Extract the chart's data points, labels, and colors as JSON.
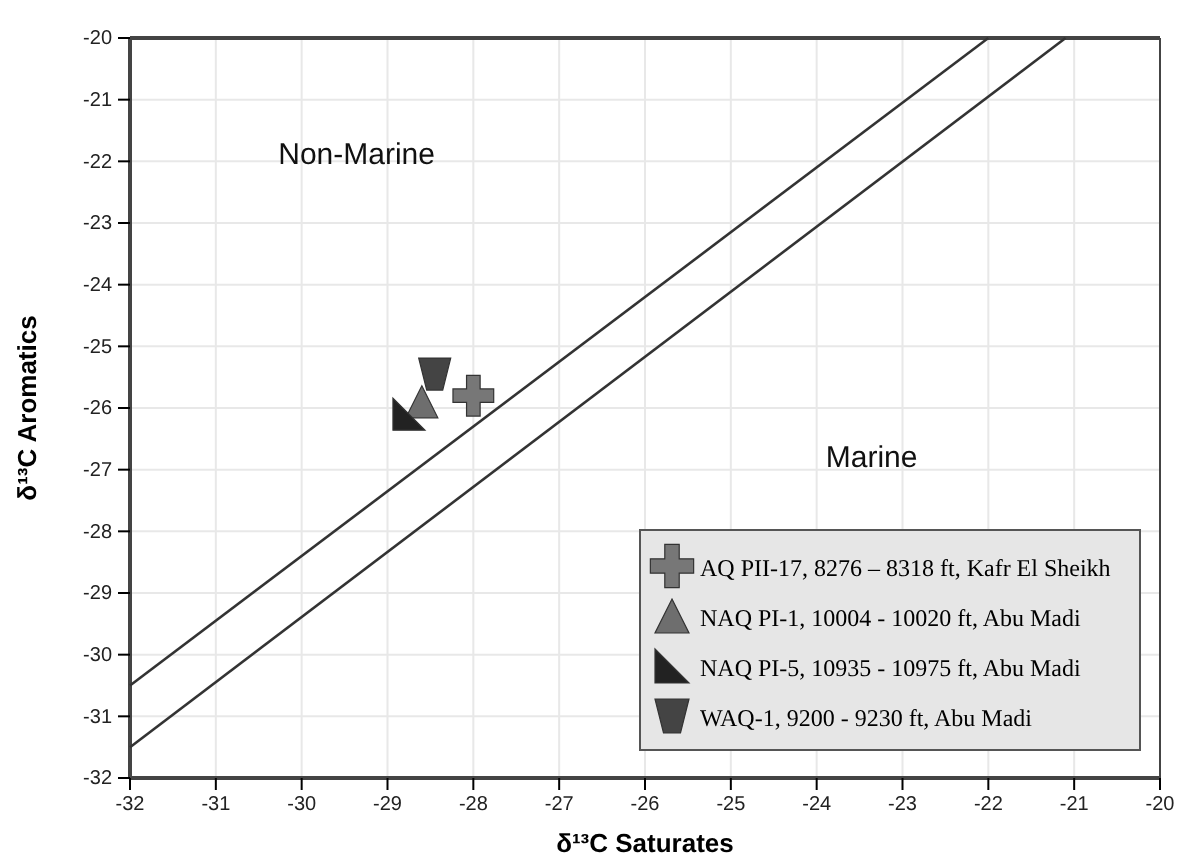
{
  "chart_data": {
    "type": "scatter",
    "xlabel": "δ¹³C Saturates",
    "ylabel": "δ¹³C Aromatics",
    "xlim": [
      -32,
      -20
    ],
    "ylim": [
      -32,
      -20
    ],
    "xticks": [
      -32,
      -31,
      -30,
      -29,
      -28,
      -27,
      -26,
      -25,
      -24,
      -23,
      -22,
      -21,
      -20
    ],
    "yticks": [
      -32,
      -31,
      -30,
      -29,
      -28,
      -27,
      -26,
      -25,
      -24,
      -23,
      -22,
      -21,
      -20
    ],
    "grid": true,
    "legend": "bottom right",
    "series": [
      {
        "type": "line",
        "color": "#333333",
        "x": [
          -32,
          -22
        ],
        "values": [
          -30.5,
          -20
        ],
        "marker": "none"
      },
      {
        "type": "line",
        "color": "#333333",
        "x": [
          -32,
          -21.1
        ],
        "values": [
          -31.5,
          -20
        ],
        "marker": "none"
      },
      {
        "name": "AQ PII-17, 8276 – 8318 ft, Kafr El Sheikh",
        "color": "#777777",
        "marker": "cross",
        "x": [
          -28.0
        ],
        "values": [
          -25.8
        ]
      },
      {
        "name": "NAQ PI-1, 10004 - 10020 ft, Abu Madi",
        "color": "#6e6e6e",
        "marker": "triangle",
        "x": [
          -28.6
        ],
        "values": [
          -25.9
        ]
      },
      {
        "name": "NAQ PI-5, 10935 - 10975 ft, Abu Madi",
        "color": "#222222",
        "x": [
          -28.75
        ],
        "values": [
          -26.1
        ]
      },
      {
        "name": "WAQ-1, 9200 - 9230 ft, Abu Madi",
        "color": "#444444",
        "x": [
          -28.45
        ],
        "values": [
          -25.45
        ]
      }
    ],
    "annotations": [
      "Non-Marine",
      "Marine"
    ]
  }
}
